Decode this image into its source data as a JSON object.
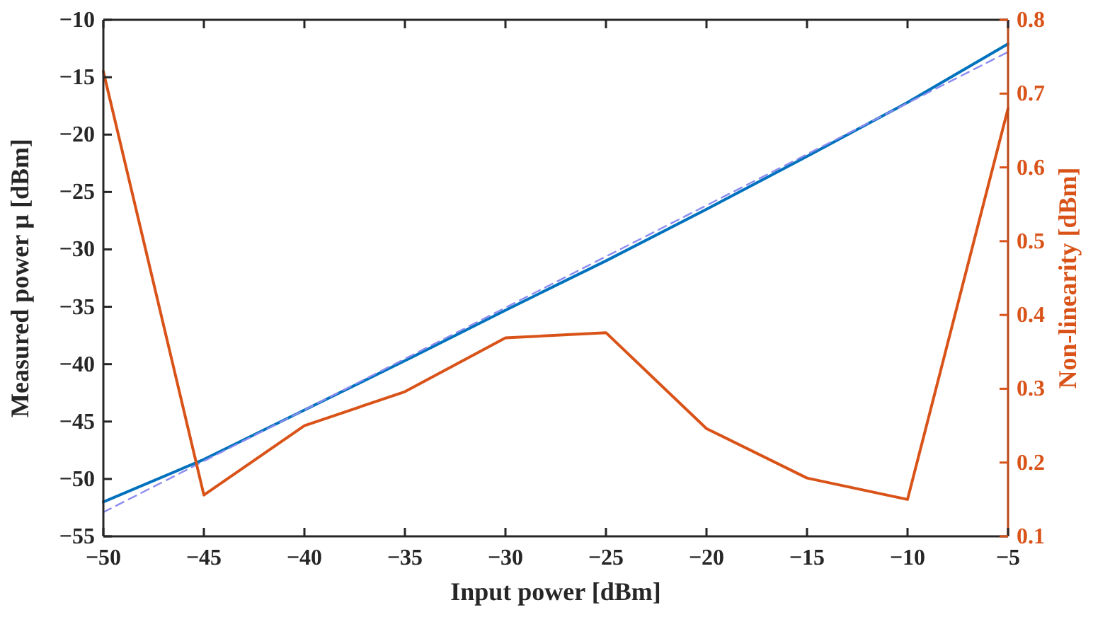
{
  "chart_data": {
    "type": "line",
    "xlabel": "Input power [dBm]",
    "ylabel": "Measured power μ [dBm]",
    "y2label": "Non-linearity [dBm]",
    "x": [
      -50,
      -45,
      -40,
      -35,
      -30,
      -25,
      -20,
      -15,
      -10,
      -5
    ],
    "xlim": [
      -50,
      -5
    ],
    "xticks": [
      -50,
      -45,
      -40,
      -35,
      -30,
      -25,
      -20,
      -15,
      -10,
      -5
    ],
    "ylim": [
      -55,
      -10
    ],
    "yticks": [
      -55,
      -50,
      -45,
      -40,
      -35,
      -30,
      -25,
      -20,
      -15,
      -10
    ],
    "y2lim": [
      0.1,
      0.8
    ],
    "y2ticks": [
      0.1,
      0.2,
      0.3,
      0.4,
      0.5,
      0.6,
      0.7,
      0.8
    ],
    "grid": false,
    "series": [
      {
        "color": "#0072bd",
        "values": [
          -52.0,
          -48.3,
          -44.0,
          -39.7,
          -35.3,
          -31.0,
          -26.5,
          -21.9,
          -17.2,
          -12.1
        ]
      },
      {
        "color": "#8c8cf0",
        "x": [
          -50,
          -5
        ],
        "values": [
          -52.9,
          -12.8
        ],
        "line_style": "dashed"
      },
      {
        "color": "#d95319",
        "axis": "y2",
        "values": [
          0.73,
          0.156,
          0.25,
          0.296,
          0.369,
          0.376,
          0.246,
          0.179,
          0.15,
          0.68
        ]
      }
    ]
  }
}
